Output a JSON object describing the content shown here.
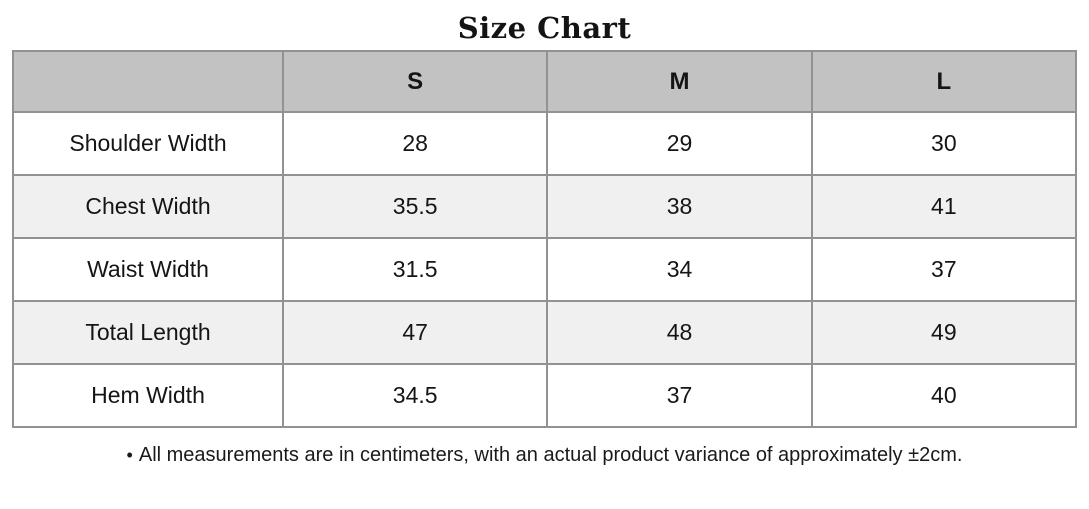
{
  "title": "Size Chart",
  "table": {
    "columns": [
      "",
      "S",
      "M",
      "L"
    ],
    "rows": [
      {
        "label": "Shoulder Width",
        "values": [
          "28",
          "29",
          "30"
        ]
      },
      {
        "label": "Chest Width",
        "values": [
          "35.5",
          "38",
          "41"
        ]
      },
      {
        "label": "Waist Width",
        "values": [
          "31.5",
          "34",
          "37"
        ]
      },
      {
        "label": "Total Length",
        "values": [
          "47",
          "48",
          "49"
        ]
      },
      {
        "label": "Hem Width",
        "values": [
          "34.5",
          "37",
          "40"
        ]
      }
    ]
  },
  "note": {
    "bullet": "•",
    "text": "All measurements are in centimeters, with an actual product variance of approximately ±2cm."
  },
  "colors": {
    "header_bg": "#c2c2c2",
    "row_alt_bg": "#f0f0f0",
    "border": "#929292"
  },
  "chart_data": {
    "type": "table",
    "title": "Size Chart",
    "columns": [
      "S",
      "M",
      "L"
    ],
    "row_labels": [
      "Shoulder Width",
      "Chest Width",
      "Waist Width",
      "Total Length",
      "Hem Width"
    ],
    "rows": [
      [
        28,
        29,
        30
      ],
      [
        35.5,
        38,
        41
      ],
      [
        31.5,
        34,
        37
      ],
      [
        47,
        48,
        49
      ],
      [
        34.5,
        37,
        40
      ]
    ],
    "units": "centimeters",
    "footnote": "All measurements are in centimeters, with an actual product variance of approximately ±2cm."
  }
}
